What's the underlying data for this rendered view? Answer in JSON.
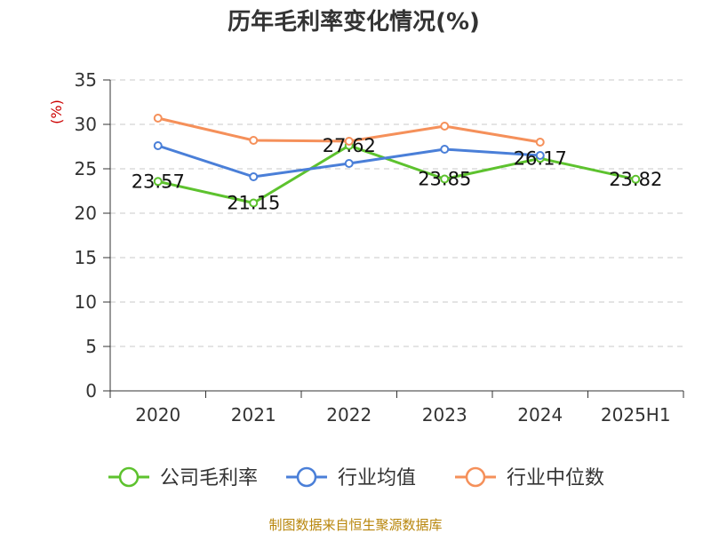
{
  "chart_data": {
    "type": "line",
    "title": "历年毛利率变化情况(%)",
    "ylabel": "(%)",
    "xlabel": "",
    "categories": [
      "2020",
      "2021",
      "2022",
      "2023",
      "2024",
      "2025H1"
    ],
    "ylim": [
      0,
      35
    ],
    "yticks": [
      0,
      5,
      10,
      15,
      20,
      25,
      30,
      35
    ],
    "grid": true,
    "legend_position": "bottom",
    "series": [
      {
        "name": "公司毛利率",
        "color": "#5dc22e",
        "values": [
          23.57,
          21.15,
          27.62,
          23.85,
          26.17,
          23.82
        ],
        "labels": [
          "23.57",
          "21.15",
          "27.62",
          "23.85",
          "26.17",
          "23.82"
        ]
      },
      {
        "name": "行业均值",
        "color": "#4a7fd8",
        "values": [
          27.6,
          24.1,
          25.6,
          27.2,
          26.5,
          null
        ]
      },
      {
        "name": "行业中位数",
        "color": "#f5905a",
        "values": [
          30.7,
          28.2,
          28.1,
          29.8,
          28.0,
          null
        ]
      }
    ]
  },
  "source": "制图数据来自恒生聚源数据库"
}
